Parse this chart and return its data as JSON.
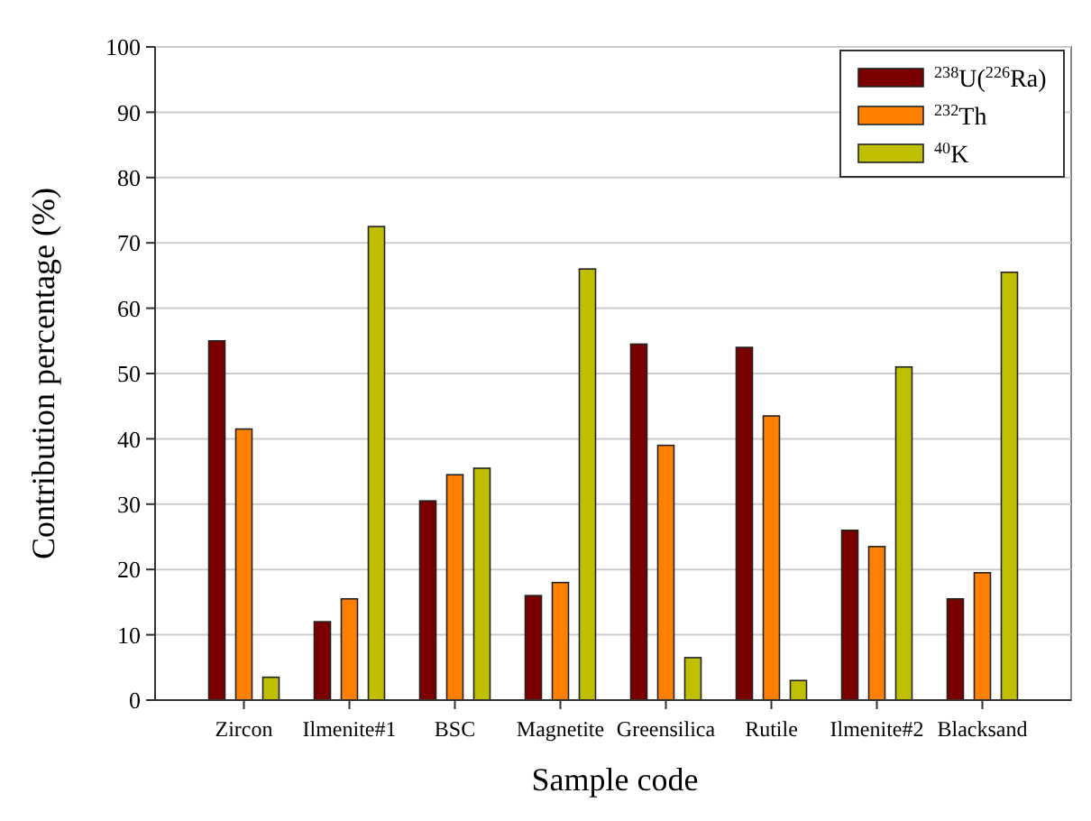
{
  "chart_data": {
    "type": "bar",
    "xlabel": "Sample code",
    "ylabel": "Contribution percentage (%)",
    "categories": [
      "Zircon",
      "Ilmenite#1",
      "BSC",
      "Magnetite",
      "Greensilica",
      "Rutile",
      "Ilmenite#2",
      "Blacksand"
    ],
    "series": [
      {
        "name": "$^{238}$U($^{226}$Ra)",
        "color": "#7a0000",
        "values": [
          55,
          12,
          30.5,
          16,
          54.5,
          54,
          26,
          15.5
        ]
      },
      {
        "name": "$^{232}$Th",
        "color": "#ff8000",
        "values": [
          41.5,
          15.5,
          34.5,
          18,
          39,
          43.5,
          23.5,
          19.5
        ]
      },
      {
        "name": "$^{40}$K",
        "color": "#bfbf00",
        "values": [
          3.5,
          72.5,
          35.5,
          66,
          6.5,
          3,
          51,
          65.5
        ]
      }
    ],
    "ylim": [
      0,
      100
    ],
    "yticks": [
      0,
      10,
      20,
      30,
      40,
      50,
      60,
      70,
      80,
      90,
      100
    ],
    "grid": "y",
    "legend": "top right"
  }
}
